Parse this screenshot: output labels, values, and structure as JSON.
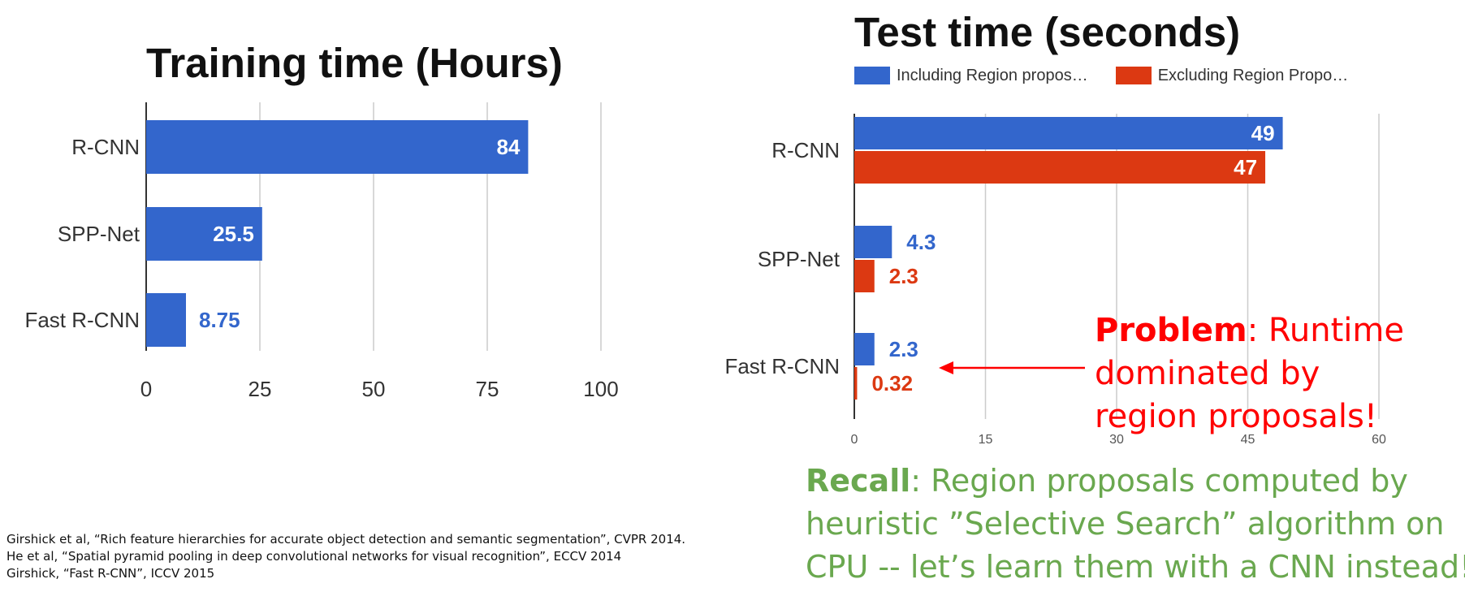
{
  "chart_data": [
    {
      "type": "bar",
      "orientation": "horizontal",
      "title": "Training time (Hours)",
      "categories": [
        "R-CNN",
        "SPP-Net",
        "Fast R-CNN"
      ],
      "series": [
        {
          "values": [
            84,
            25.5,
            8.75
          ],
          "labels": [
            "84",
            "25.5",
            "8.75"
          ]
        }
      ],
      "xlim": [
        0,
        100
      ],
      "xticks": [
        "0",
        "25",
        "50",
        "75",
        "100"
      ],
      "grid": true,
      "colors": {
        "bar": "#3366cc",
        "label_inside": "#ffffff",
        "label_outside": "#3366cc"
      }
    },
    {
      "type": "bar",
      "orientation": "horizontal",
      "title": "Test time (seconds)",
      "categories": [
        "R-CNN",
        "SPP-Net",
        "Fast R-CNN"
      ],
      "series": [
        {
          "name": "Including Region propos…",
          "values": [
            49,
            4.3,
            2.3
          ],
          "labels": [
            "49",
            "4.3",
            "2.3"
          ],
          "color": "#3366cc"
        },
        {
          "name": "Excluding Region Propo…",
          "values": [
            47,
            2.3,
            0.32
          ],
          "labels": [
            "47",
            "2.3",
            "0.32"
          ],
          "color": "#dc3912"
        }
      ],
      "xlim": [
        0,
        60
      ],
      "xticks": [
        "0",
        "15",
        "30",
        "45",
        "60"
      ],
      "grid": true,
      "legend": "top"
    }
  ],
  "annotations": {
    "problem_bold": "Problem",
    "problem_lines": [
      ": Runtime",
      "dominated by",
      "region proposals!"
    ],
    "problem_color": "#ff0000",
    "recall_bold": "Recall",
    "recall_lines": [
      ": Region proposals computed by",
      "heuristic ”Selective Search” algorithm on",
      "CPU -- let’s learn them with a CNN instead!"
    ],
    "recall_color": "#6aa84f"
  },
  "references": [
    "Girshick et al, “Rich feature hierarchies for accurate object detection and semantic segmentation”, CVPR 2014.",
    "He et al, “Spatial pyramid pooling in deep convolutional networks for visual recognition”, ECCV 2014",
    "Girshick, “Fast R-CNN”, ICCV 2015"
  ]
}
